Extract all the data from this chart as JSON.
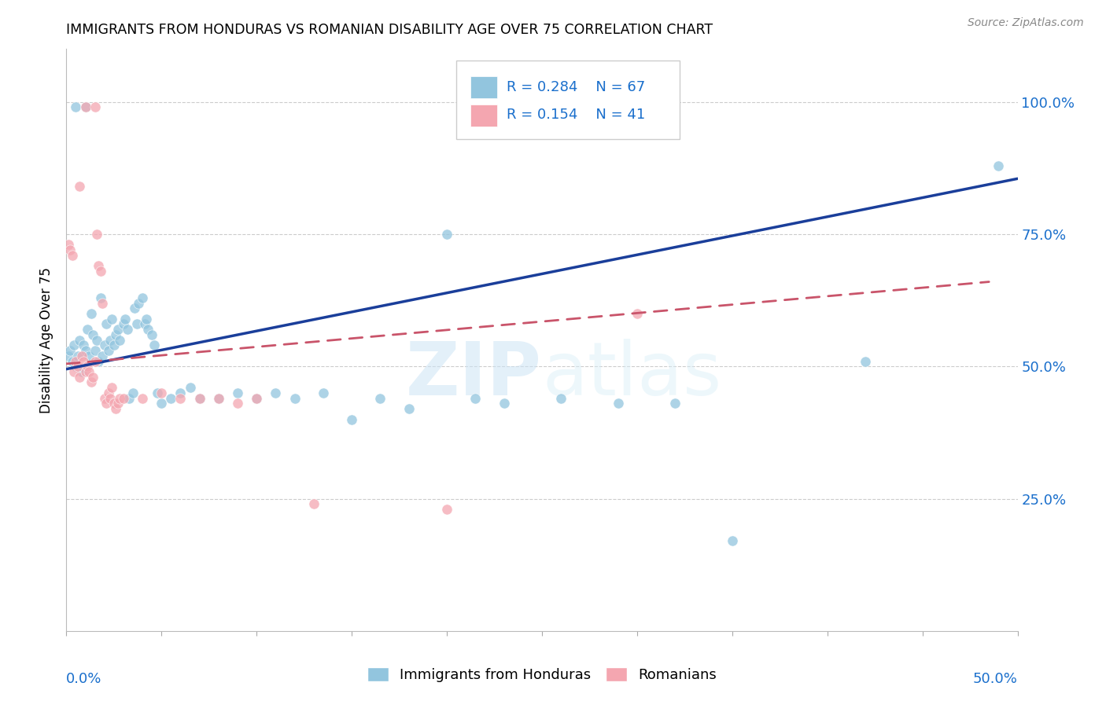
{
  "title": "IMMIGRANTS FROM HONDURAS VS ROMANIAN DISABILITY AGE OVER 75 CORRELATION CHART",
  "source": "Source: ZipAtlas.com",
  "ylabel": "Disability Age Over 75",
  "legend_label_blue": "Immigrants from Honduras",
  "legend_label_pink": "Romanians",
  "blue_color": "#92c5de",
  "pink_color": "#f4a6b0",
  "trendline_blue": "#1a3e9a",
  "trendline_pink": "#c9546a",
  "watermark": "ZIPatlas",
  "blue_points_x": [
    0.001,
    0.002,
    0.003,
    0.004,
    0.005,
    0.006,
    0.007,
    0.008,
    0.009,
    0.01,
    0.011,
    0.012,
    0.013,
    0.014,
    0.015,
    0.016,
    0.017,
    0.018,
    0.019,
    0.02,
    0.021,
    0.022,
    0.023,
    0.024,
    0.025,
    0.026,
    0.027,
    0.028,
    0.03,
    0.031,
    0.032,
    0.033,
    0.035,
    0.036,
    0.037,
    0.038,
    0.04,
    0.041,
    0.042,
    0.043,
    0.045,
    0.046,
    0.048,
    0.05,
    0.055,
    0.06,
    0.065,
    0.07,
    0.08,
    0.09,
    0.1,
    0.11,
    0.12,
    0.135,
    0.15,
    0.165,
    0.18,
    0.2,
    0.215,
    0.23,
    0.26,
    0.29,
    0.32,
    0.35,
    0.42,
    0.49,
    0.005,
    0.01
  ],
  "blue_points_y": [
    0.52,
    0.53,
    0.51,
    0.54,
    0.5,
    0.52,
    0.55,
    0.49,
    0.54,
    0.53,
    0.57,
    0.52,
    0.6,
    0.56,
    0.53,
    0.55,
    0.51,
    0.63,
    0.52,
    0.54,
    0.58,
    0.53,
    0.55,
    0.59,
    0.54,
    0.56,
    0.57,
    0.55,
    0.58,
    0.59,
    0.57,
    0.44,
    0.45,
    0.61,
    0.58,
    0.62,
    0.63,
    0.58,
    0.59,
    0.57,
    0.56,
    0.54,
    0.45,
    0.43,
    0.44,
    0.45,
    0.46,
    0.44,
    0.44,
    0.45,
    0.44,
    0.45,
    0.44,
    0.45,
    0.4,
    0.44,
    0.42,
    0.75,
    0.44,
    0.43,
    0.44,
    0.43,
    0.43,
    0.17,
    0.51,
    0.88,
    0.99,
    0.99
  ],
  "pink_points_x": [
    0.001,
    0.002,
    0.003,
    0.004,
    0.005,
    0.006,
    0.007,
    0.008,
    0.009,
    0.01,
    0.011,
    0.012,
    0.013,
    0.014,
    0.015,
    0.016,
    0.017,
    0.018,
    0.019,
    0.02,
    0.021,
    0.022,
    0.023,
    0.024,
    0.025,
    0.026,
    0.027,
    0.028,
    0.03,
    0.04,
    0.05,
    0.06,
    0.07,
    0.08,
    0.09,
    0.1,
    0.13,
    0.2,
    0.3,
    0.007,
    0.01,
    0.015
  ],
  "pink_points_y": [
    0.73,
    0.72,
    0.71,
    0.49,
    0.51,
    0.5,
    0.48,
    0.52,
    0.51,
    0.49,
    0.5,
    0.49,
    0.47,
    0.48,
    0.51,
    0.75,
    0.69,
    0.68,
    0.62,
    0.44,
    0.43,
    0.45,
    0.44,
    0.46,
    0.43,
    0.42,
    0.43,
    0.44,
    0.44,
    0.44,
    0.45,
    0.44,
    0.44,
    0.44,
    0.43,
    0.44,
    0.24,
    0.23,
    0.6,
    0.84,
    0.99,
    0.99
  ],
  "xlim": [
    0.0,
    0.5
  ],
  "ylim": [
    0.0,
    1.1
  ],
  "y_ticks": [
    0.25,
    0.5,
    0.75,
    1.0
  ],
  "y_tick_labels": [
    "25.0%",
    "50.0%",
    "75.0%",
    "100.0%"
  ],
  "blue_trend_x": [
    0.0,
    0.5
  ],
  "blue_trend_y": [
    0.495,
    0.855
  ],
  "pink_trend_x": [
    0.0,
    0.485
  ],
  "pink_trend_y": [
    0.505,
    0.66
  ]
}
